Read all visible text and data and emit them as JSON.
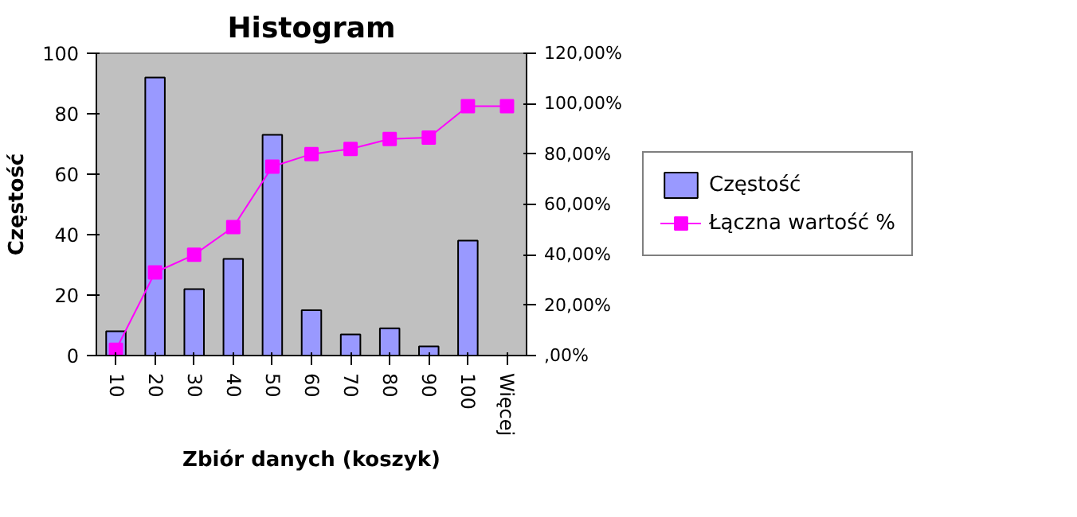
{
  "chart_data": {
    "type": "bar",
    "title": "Histogram",
    "xlabel": "Zbiór danych (koszyk)",
    "ylabel": "Częstość",
    "categories": [
      "10",
      "20",
      "30",
      "40",
      "50",
      "60",
      "70",
      "80",
      "90",
      "100",
      "Więcej"
    ],
    "series": [
      {
        "name": "Częstość",
        "type": "bar",
        "color": "#9999ff",
        "values": [
          8,
          92,
          22,
          32,
          73,
          15,
          7,
          9,
          3,
          38,
          0
        ]
      },
      {
        "name": "Łączna wartość %",
        "type": "line",
        "axis": "y2",
        "color": "#ff00ff",
        "marker": "square",
        "values": [
          2.3,
          33,
          40,
          51,
          75,
          80,
          82,
          86,
          86.5,
          99,
          99
        ]
      }
    ],
    "ylim": [
      0,
      100
    ],
    "yticks": [
      0,
      20,
      40,
      60,
      80,
      100
    ],
    "y2lim": [
      0,
      120
    ],
    "y2ticks": [
      {
        "value": 0,
        "label": ",00%"
      },
      {
        "value": 20,
        "label": "20,00%"
      },
      {
        "value": 40,
        "label": "40,00%"
      },
      {
        "value": 60,
        "label": "60,00%"
      },
      {
        "value": 80,
        "label": "80,00%"
      },
      {
        "value": 100,
        "label": "100,00%"
      },
      {
        "value": 120,
        "label": "120,00%"
      }
    ],
    "grid": false,
    "legend": "right"
  }
}
